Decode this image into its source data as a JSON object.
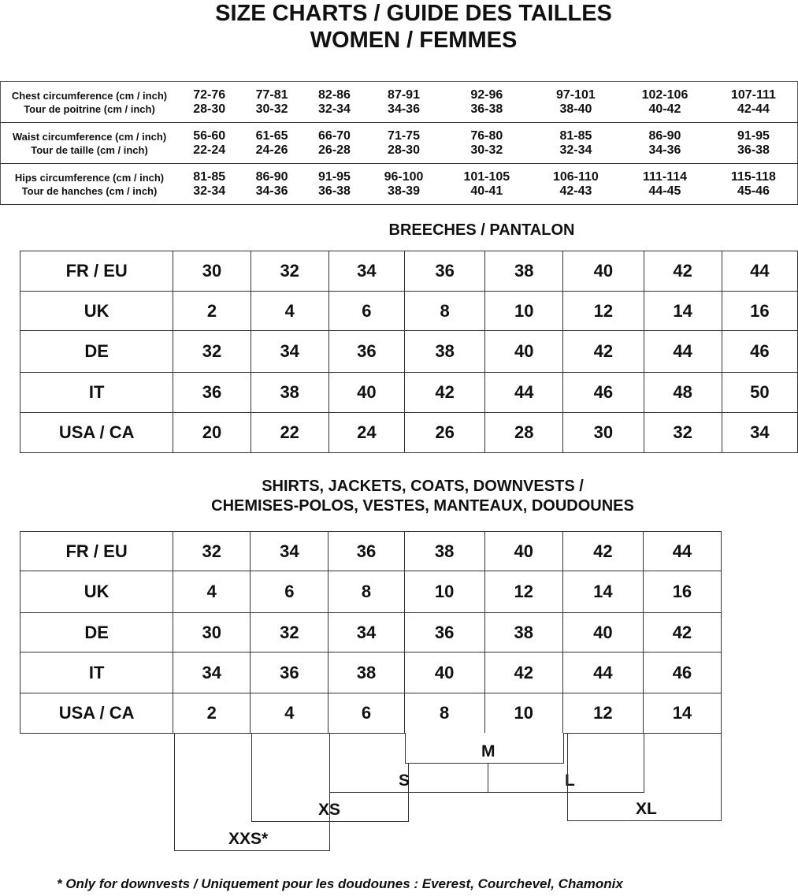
{
  "title_line1": "SIZE CHARTS / GUIDE DES TAILLES",
  "title_line2": "WOMEN / FEMMES",
  "measurements": [
    {
      "label_en": "Chest circumference (cm / inch)",
      "label_fr": "Tour de poitrine (cm / inch)",
      "cm": [
        "72-76",
        "77-81",
        "82-86",
        "87-91",
        "92-96",
        "97-101",
        "102-106",
        "107-111"
      ],
      "inch": [
        "28-30",
        "30-32",
        "32-34",
        "34-36",
        "36-38",
        "38-40",
        "40-42",
        "42-44"
      ]
    },
    {
      "label_en": "Waist circumference (cm / inch)",
      "label_fr": "Tour de taille (cm / inch)",
      "cm": [
        "56-60",
        "61-65",
        "66-70",
        "71-75",
        "76-80",
        "81-85",
        "86-90",
        "91-95"
      ],
      "inch": [
        "22-24",
        "24-26",
        "26-28",
        "28-30",
        "30-32",
        "32-34",
        "34-36",
        "36-38"
      ]
    },
    {
      "label_en": "Hips circumference (cm / inch)",
      "label_fr": "Tour de hanches (cm / inch)",
      "cm": [
        "81-85",
        "86-90",
        "91-95",
        "96-100",
        "101-105",
        "106-110",
        "111-114",
        "115-118"
      ],
      "inch": [
        "32-34",
        "34-36",
        "36-38",
        "38-39",
        "40-41",
        "42-43",
        "44-45",
        "45-46"
      ]
    }
  ],
  "breeches": {
    "title": "BREECHES / PANTALON",
    "rows": [
      {
        "label": "FR / EU",
        "values": [
          "30",
          "32",
          "34",
          "36",
          "38",
          "40",
          "42",
          "44"
        ]
      },
      {
        "label": "UK",
        "values": [
          "2",
          "4",
          "6",
          "8",
          "10",
          "12",
          "14",
          "16"
        ]
      },
      {
        "label": "DE",
        "values": [
          "32",
          "34",
          "36",
          "38",
          "40",
          "42",
          "44",
          "46"
        ]
      },
      {
        "label": "IT",
        "values": [
          "36",
          "38",
          "40",
          "42",
          "44",
          "46",
          "48",
          "50"
        ]
      },
      {
        "label": "USA / CA",
        "values": [
          "20",
          "22",
          "24",
          "26",
          "28",
          "30",
          "32",
          "34"
        ]
      }
    ]
  },
  "shirts": {
    "title_line1": "SHIRTS, JACKETS, COATS, DOWNVESTS /",
    "title_line2": "CHEMISES-POLOS, VESTES, MANTEAUX, DOUDOUNES",
    "rows": [
      {
        "label": "FR / EU",
        "values": [
          "32",
          "34",
          "36",
          "38",
          "40",
          "42",
          "44"
        ]
      },
      {
        "label": "UK",
        "values": [
          "4",
          "6",
          "8",
          "10",
          "12",
          "14",
          "16"
        ]
      },
      {
        "label": "DE",
        "values": [
          "30",
          "32",
          "34",
          "36",
          "38",
          "40",
          "42"
        ]
      },
      {
        "label": "IT",
        "values": [
          "34",
          "36",
          "38",
          "40",
          "42",
          "44",
          "46"
        ]
      },
      {
        "label": "USA / CA",
        "values": [
          "2",
          "4",
          "6",
          "8",
          "10",
          "12",
          "14"
        ]
      }
    ],
    "letter_sizes": [
      "XXS*",
      "XS",
      "S",
      "M",
      "L",
      "XL"
    ]
  },
  "footnote": "*  Only for downvests / Uniquement pour les doudounes : Everest, Courchevel, Chamonix"
}
